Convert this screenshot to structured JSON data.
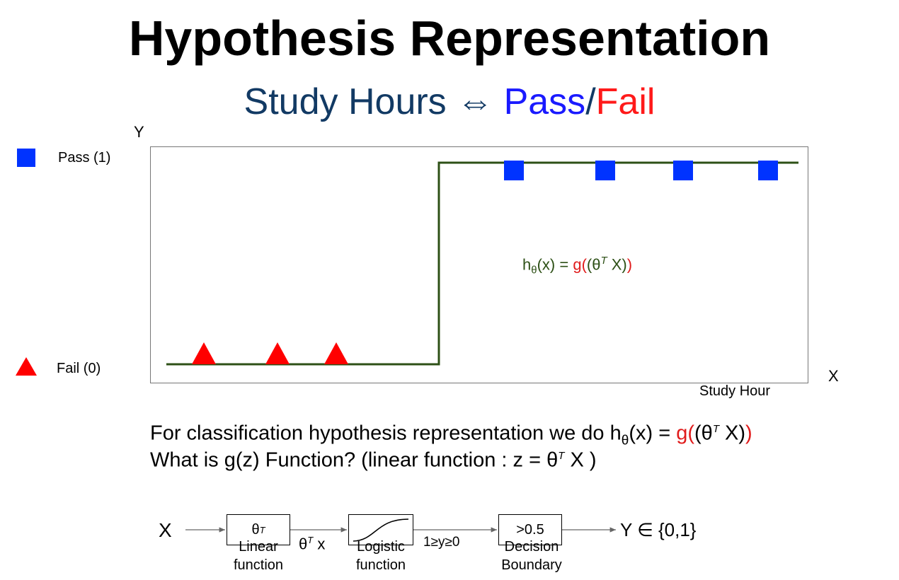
{
  "header": {
    "title": "Hypothesis Representation",
    "subtitle_left": "Study Hours ⇔ ",
    "subtitle_pass": "Pass",
    "subtitle_slash": "/",
    "subtitle_fail": "Fail"
  },
  "plot": {
    "y_axis_label": "Y",
    "x_axis_label": "X",
    "x_caption": "Study Hour",
    "legend": [
      {
        "label": "Pass (1)",
        "marker": "blue-square",
        "color": "#0033ff"
      },
      {
        "label": "Fail (0)",
        "marker": "red-triangle",
        "color": "#ff0000"
      }
    ],
    "step_color": "#2d5016",
    "formula": {
      "h": "h",
      "theta_sub": "θ",
      "x_part": "(x) = ",
      "g": "g",
      "open": "(",
      "inner": "(θ",
      "T": "T",
      "X_close": " X)",
      "close": ")"
    }
  },
  "chart_data": {
    "type": "scatter",
    "series": [
      {
        "name": "Pass (1)",
        "points": [
          {
            "x": 726,
            "y": 1
          },
          {
            "x": 855,
            "y": 1
          },
          {
            "x": 965,
            "y": 1
          },
          {
            "x": 1085,
            "y": 1
          }
        ]
      },
      {
        "name": "Fail (0)",
        "points": [
          {
            "x": 288,
            "y": 0
          },
          {
            "x": 392,
            "y": 0
          },
          {
            "x": 475,
            "y": 0
          }
        ]
      }
    ],
    "step": {
      "x_start": 235,
      "x_threshold": 620,
      "x_end": 1128,
      "low": 0,
      "high": 1
    }
  },
  "text": {
    "line1_prefix": "For classification hypothesis representation we do h",
    "line1_sub": "θ",
    "line1_mid": "(x) = ",
    "line1_g": "g",
    "line1_paren": "(",
    "line1_theta": "(θ",
    "line1_T": "T",
    "line1_X": " X)",
    "line1_close": ")",
    "line2_prefix": "What is g(z) Function? (linear function : z = θ",
    "line2_T": "T",
    "line2_suffix": " X )"
  },
  "pipeline": {
    "input": "X",
    "box1_theta": "θ",
    "box1_T": "T",
    "arrow1_theta": "θ",
    "arrow1_T": "T",
    "arrow1_x": " x",
    "arrow2_label": "1≥y≥0",
    "box3": ">0.5",
    "output": "Y ∈ {0,1}",
    "label1_line1": "Linear",
    "label1_line2": "function",
    "label2_line1": "Logistic",
    "label2_line2": "function",
    "label3_line1": "Decision",
    "label3_line2": "Boundary"
  }
}
